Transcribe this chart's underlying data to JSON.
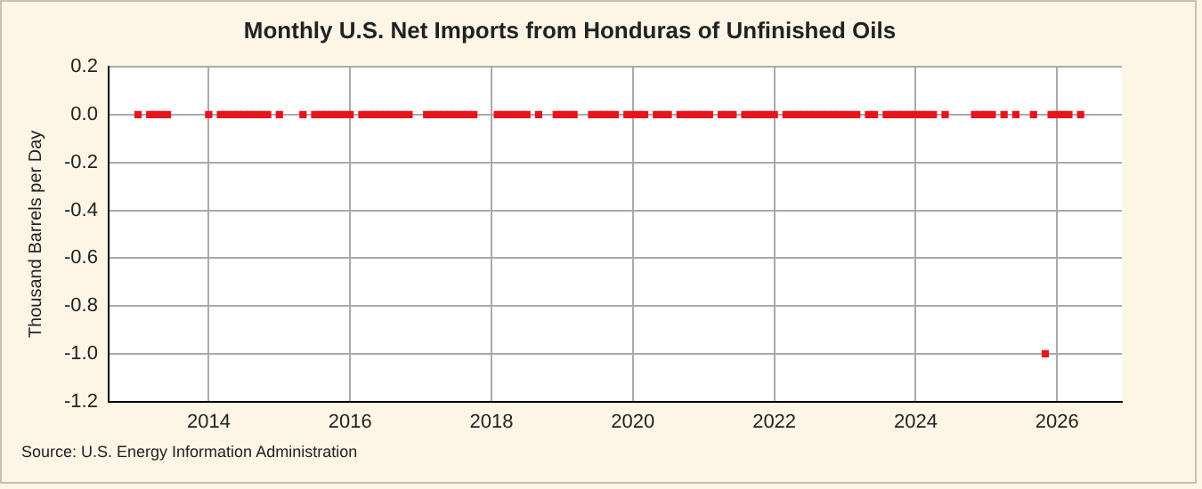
{
  "chart_data": {
    "type": "scatter",
    "title": "Monthly U.S. Net Imports from Honduras of Unfinished Oils",
    "ylabel": "Thousand Barrels per Day",
    "annotations": [
      "Source: U.S. Energy Information Administration"
    ],
    "x": [
      "2013-01",
      "2013-03",
      "2013-04",
      "2013-05",
      "2013-06",
      "2014-01",
      "2014-03",
      "2014-04",
      "2014-05",
      "2014-06",
      "2014-07",
      "2014-08",
      "2014-09",
      "2014-10",
      "2014-11",
      "2015-01",
      "2015-05",
      "2015-07",
      "2015-08",
      "2015-09",
      "2015-10",
      "2015-11",
      "2015-12",
      "2016-01",
      "2016-03",
      "2016-04",
      "2016-05",
      "2016-06",
      "2016-07",
      "2016-08",
      "2016-09",
      "2016-10",
      "2016-11",
      "2017-02",
      "2017-03",
      "2017-04",
      "2017-05",
      "2017-06",
      "2017-07",
      "2017-08",
      "2017-09",
      "2017-10",
      "2018-02",
      "2018-03",
      "2018-04",
      "2018-05",
      "2018-06",
      "2018-07",
      "2018-09",
      "2018-12",
      "2019-01",
      "2019-02",
      "2019-03",
      "2019-06",
      "2019-07",
      "2019-08",
      "2019-09",
      "2019-10",
      "2019-12",
      "2020-01",
      "2020-02",
      "2020-03",
      "2020-05",
      "2020-06",
      "2020-07",
      "2020-09",
      "2020-10",
      "2020-11",
      "2020-12",
      "2021-01",
      "2021-02",
      "2021-04",
      "2021-05",
      "2021-06",
      "2021-08",
      "2021-09",
      "2021-10",
      "2021-11",
      "2021-12",
      "2022-01",
      "2022-03",
      "2022-04",
      "2022-05",
      "2022-06",
      "2022-07",
      "2022-08",
      "2022-09",
      "2022-10",
      "2022-11",
      "2022-12",
      "2023-01",
      "2023-02",
      "2023-03",
      "2023-05",
      "2023-06",
      "2023-08",
      "2023-09",
      "2023-10",
      "2023-11",
      "2023-12",
      "2024-01",
      "2024-02",
      "2024-03",
      "2024-04",
      "2024-06",
      "2024-11",
      "2024-12",
      "2025-01",
      "2025-02",
      "2025-04",
      "2025-06",
      "2025-09",
      "2025-11",
      "2025-12",
      "2026-01",
      "2026-02",
      "2026-03",
      "2026-05"
    ],
    "values": [
      0,
      0,
      0,
      0,
      0,
      0,
      0,
      0,
      0,
      0,
      0,
      0,
      0,
      0,
      0,
      0,
      0,
      0,
      0,
      0,
      0,
      0,
      0,
      0,
      0,
      0,
      0,
      0,
      0,
      0,
      0,
      0,
      0,
      0,
      0,
      0,
      0,
      0,
      0,
      0,
      0,
      0,
      0,
      0,
      0,
      0,
      0,
      0,
      0,
      0,
      0,
      0,
      0,
      0,
      0,
      0,
      0,
      0,
      0,
      0,
      0,
      0,
      0,
      0,
      0,
      0,
      0,
      0,
      0,
      0,
      0,
      0,
      0,
      0,
      0,
      0,
      0,
      0,
      0,
      0,
      0,
      0,
      0,
      0,
      0,
      0,
      0,
      0,
      0,
      0,
      0,
      0,
      0,
      0,
      0,
      0,
      0,
      0,
      0,
      0,
      0,
      0,
      0,
      0,
      0,
      0,
      0,
      0,
      0,
      0,
      0,
      0,
      -1.0,
      0,
      0,
      0,
      0,
      0
    ],
    "color": "#e8141c",
    "marker": "square",
    "xlim": [
      "2012-08",
      "2026-12"
    ],
    "xticks": [
      "2014",
      "2016",
      "2018",
      "2020",
      "2022",
      "2024",
      "2026"
    ],
    "ylim": [
      -1.2,
      0.2
    ],
    "yticks": [
      {
        "value": -1.2,
        "label": "-1.2"
      },
      {
        "value": -1.0,
        "label": "-1.0"
      },
      {
        "value": -0.8,
        "label": "-0.8"
      },
      {
        "value": -0.6,
        "label": "-0.6"
      },
      {
        "value": -0.4,
        "label": "-0.4"
      },
      {
        "value": -0.2,
        "label": "-0.2"
      },
      {
        "value": 0,
        "label": "0.0"
      },
      {
        "value": 0.2,
        "label": "0.2"
      }
    ],
    "grid": true
  }
}
